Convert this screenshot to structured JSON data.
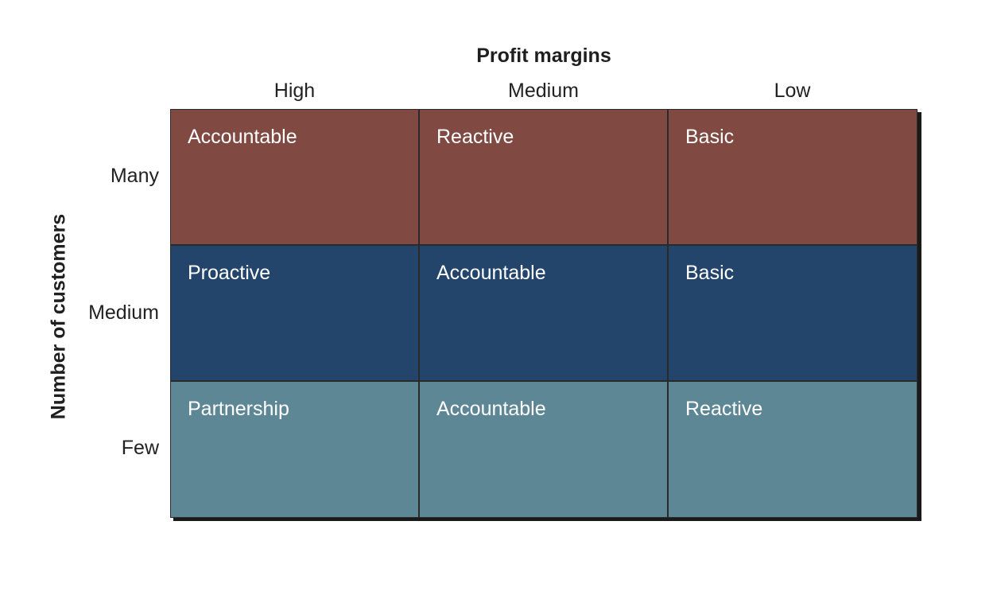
{
  "x_axis": {
    "title": "Profit margins",
    "columns": [
      "High",
      "Medium",
      "Low"
    ]
  },
  "y_axis": {
    "title": "Number of customers",
    "rows": [
      "Many",
      "Medium",
      "Few"
    ]
  },
  "matrix": [
    [
      "Accountable",
      "Reactive",
      "Basic"
    ],
    [
      "Proactive",
      "Accountable",
      "Basic"
    ],
    [
      "Partnership",
      "Accountable",
      "Reactive"
    ]
  ],
  "colors": {
    "many_row": "#804a42",
    "medium_row": "#23446b",
    "few_row": "#5e8796",
    "grid_line": "#2a2a2a",
    "cell_text": "#ffffff"
  }
}
